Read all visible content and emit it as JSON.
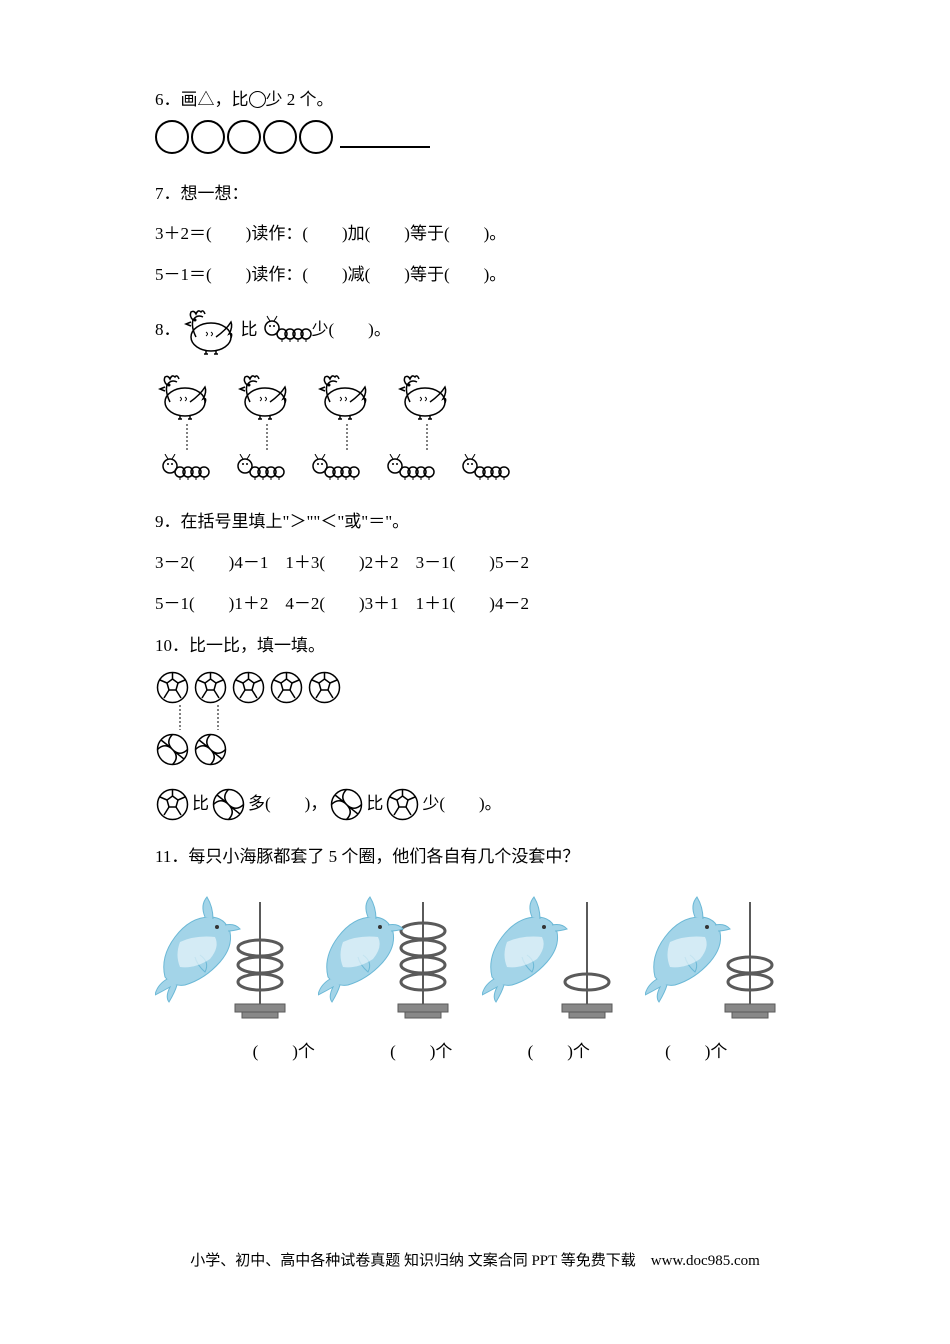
{
  "q6": {
    "title": "6．画△，比",
    "title_end": "少 2 个。",
    "circle_count": 5
  },
  "q7": {
    "title": "7．想一想：",
    "line1": "3＋2＝(　　)读作：(　　)加(　　)等于(　　)。",
    "line2": "5－1＝(　　)读作：(　　)减(　　)等于(　　)。"
  },
  "q8": {
    "prefix": "8．",
    "mid": "比",
    "suffix": "少(　　)。",
    "hen_count": 4,
    "caterpillar_count": 5
  },
  "q9": {
    "title": "9．在括号里填上\"＞\"\"＜\"或\"＝\"。",
    "line1": "3－2(　　)4－1　1＋3(　　)2＋2　3－1(　　)5－2",
    "line2": "5－1(　　)1＋2　4－2(　　)3＋1　1＋1(　　)4－2"
  },
  "q10": {
    "title": "10．比一比，填一填。",
    "soccer_count": 5,
    "volleyball_count": 2,
    "compare_text1": "比",
    "compare_text2": "多(　　)，",
    "compare_text3": "比",
    "compare_text4": "少(　　)。"
  },
  "q11": {
    "title": "11．每只小海豚都套了 5 个圈，他们各自有几个没套中？",
    "dolphins": [
      {
        "rings": 3
      },
      {
        "rings": 4
      },
      {
        "rings": 1
      },
      {
        "rings": 2
      }
    ],
    "label": "(　　)个"
  },
  "footer": "小学、初中、高中各种试卷真题 知识归纳 文案合同 PPT 等免费下载　www.doc985.com"
}
